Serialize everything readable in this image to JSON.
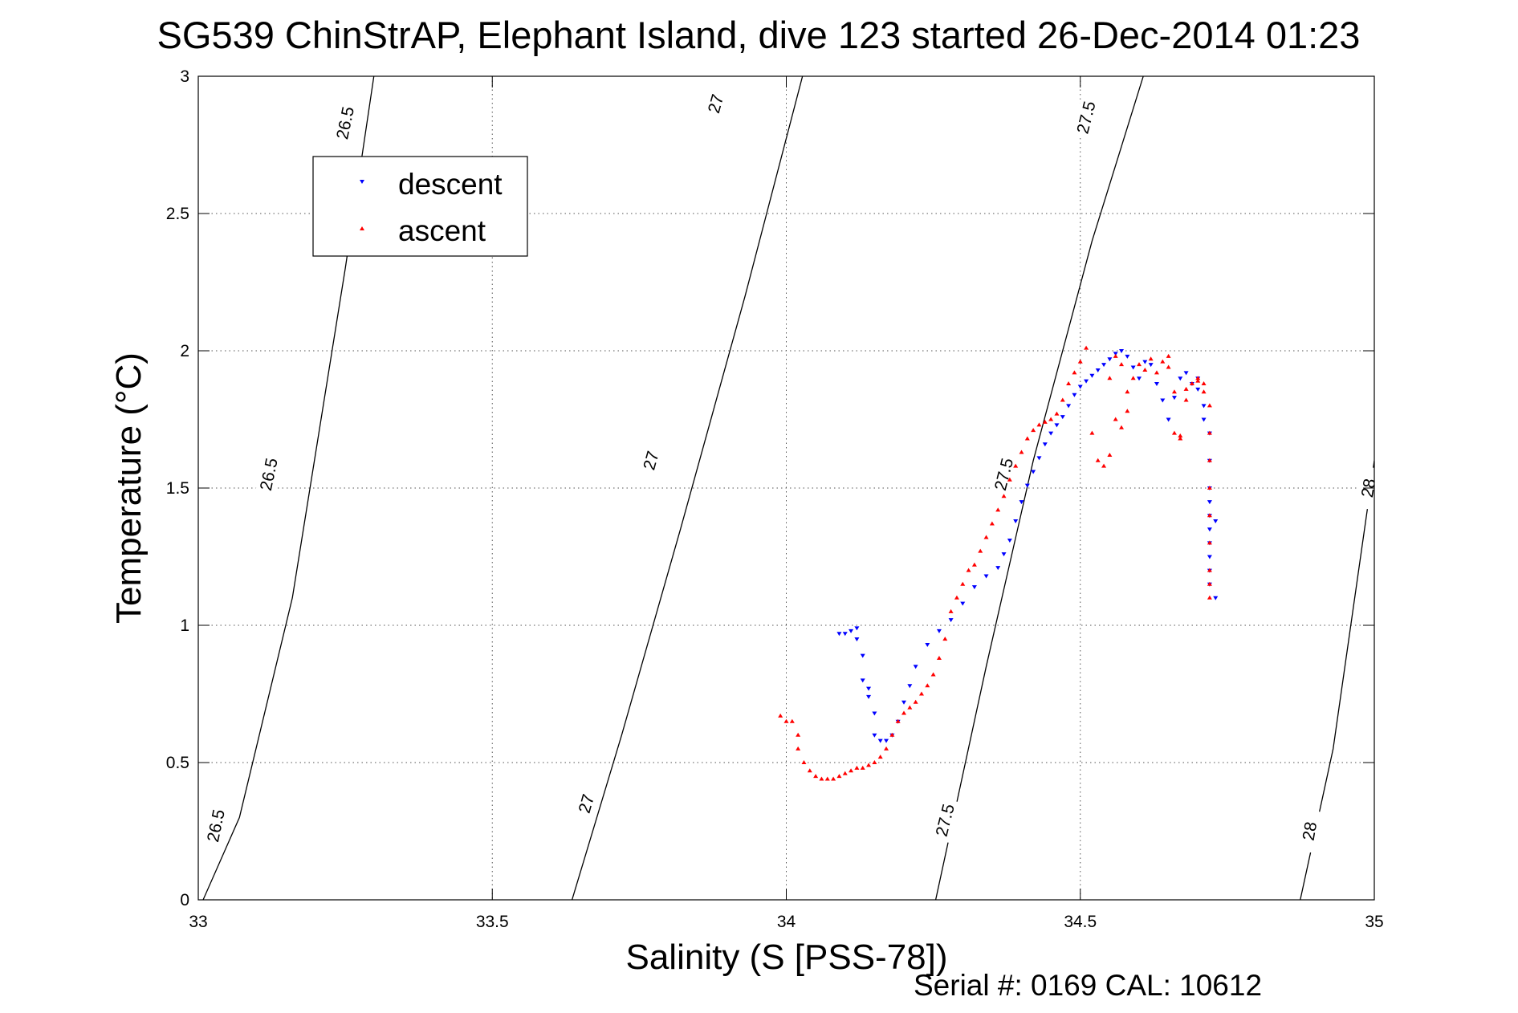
{
  "chart_data": {
    "type": "scatter",
    "title": "SG539 ChinStrAP, Elephant Island, dive 123 started 26-Dec-2014 01:23",
    "xlabel": "Salinity (S [PSS-78])",
    "ylabel": "Temperature (°C)",
    "xlim": [
      33,
      35
    ],
    "ylim": [
      0,
      3
    ],
    "x_ticks": [
      "33",
      "33.5",
      "34",
      "34.5",
      "35"
    ],
    "y_ticks": [
      "0",
      "0.5",
      "1",
      "1.5",
      "2",
      "2.5",
      "3"
    ],
    "grid": true,
    "legend": {
      "position": "top-left",
      "entries": [
        {
          "name": "descent",
          "marker": "triangle-down",
          "color": "#0000ff"
        },
        {
          "name": "ascent",
          "marker": "triangle-up",
          "color": "#ff0000"
        }
      ]
    },
    "footer": "Serial #: 0169 CAL: 10612",
    "isopycnals": [
      {
        "label": "26.5",
        "line": [
          [
            33.0,
            -0.04
          ],
          [
            33.07,
            0.3
          ],
          [
            33.16,
            1.1
          ],
          [
            33.25,
            2.3
          ],
          [
            33.3,
            3.02
          ]
        ],
        "labels_at": [
          [
            33.03,
            0.27
          ],
          [
            33.12,
            1.55
          ],
          [
            33.25,
            2.83
          ]
        ]
      },
      {
        "label": "27",
        "line": [
          [
            33.63,
            -0.04
          ],
          [
            33.72,
            0.6
          ],
          [
            33.82,
            1.35
          ],
          [
            33.93,
            2.2
          ],
          [
            34.03,
            3.02
          ]
        ],
        "labels_at": [
          [
            33.66,
            0.35
          ],
          [
            33.77,
            1.6
          ],
          [
            33.88,
            2.9
          ]
        ]
      },
      {
        "label": "27.5",
        "line": [
          [
            34.25,
            -0.04
          ],
          [
            34.34,
            0.85
          ],
          [
            34.42,
            1.6
          ],
          [
            34.52,
            2.4
          ],
          [
            34.61,
            3.02
          ]
        ],
        "labels_at": [
          [
            34.27,
            0.29
          ],
          [
            34.37,
            1.55
          ],
          [
            34.51,
            2.85
          ]
        ]
      },
      {
        "label": "28",
        "line": [
          [
            34.87,
            -0.04
          ],
          [
            34.93,
            0.55
          ],
          [
            34.99,
            1.45
          ],
          [
            35.0,
            1.6
          ]
        ],
        "labels_at": [
          [
            34.89,
            0.25
          ],
          [
            34.99,
            1.5
          ]
        ]
      }
    ],
    "series": [
      {
        "name": "descent",
        "color": "#0000ff",
        "marker": "triangle-down",
        "x": [
          34.09,
          34.1,
          34.11,
          34.12,
          34.12,
          34.13,
          34.13,
          34.14,
          34.14,
          34.15,
          34.15,
          34.16,
          34.17,
          34.18,
          34.19,
          34.2,
          34.21,
          34.22,
          34.24,
          34.26,
          34.28,
          34.3,
          34.32,
          34.34,
          34.36,
          34.37,
          34.38,
          34.39,
          34.4,
          34.41,
          34.42,
          34.43,
          34.44,
          34.45,
          34.46,
          34.47,
          34.48,
          34.49,
          34.5,
          34.51,
          34.52,
          34.53,
          34.54,
          34.55,
          34.56,
          34.57,
          34.58,
          34.59,
          34.6,
          34.61,
          34.62,
          34.63,
          34.64,
          34.65,
          34.66,
          34.67,
          34.68,
          34.69,
          34.7,
          34.7,
          34.71,
          34.71,
          34.72,
          34.72,
          34.72,
          34.72,
          34.72,
          34.72,
          34.72,
          34.72,
          34.72,
          34.72,
          34.73,
          34.73
        ],
        "y": [
          0.97,
          0.97,
          0.98,
          0.99,
          0.95,
          0.89,
          0.8,
          0.77,
          0.74,
          0.68,
          0.6,
          0.58,
          0.58,
          0.6,
          0.65,
          0.72,
          0.78,
          0.85,
          0.93,
          0.98,
          1.02,
          1.08,
          1.14,
          1.18,
          1.21,
          1.26,
          1.31,
          1.38,
          1.45,
          1.51,
          1.56,
          1.61,
          1.66,
          1.7,
          1.73,
          1.76,
          1.8,
          1.84,
          1.87,
          1.89,
          1.91,
          1.93,
          1.95,
          1.97,
          1.99,
          2.0,
          1.98,
          1.94,
          1.9,
          1.96,
          1.95,
          1.88,
          1.82,
          1.75,
          1.83,
          1.9,
          1.92,
          1.88,
          1.9,
          1.86,
          1.8,
          1.75,
          1.7,
          1.6,
          1.5,
          1.45,
          1.4,
          1.35,
          1.3,
          1.25,
          1.2,
          1.15,
          1.1,
          1.38
        ]
      },
      {
        "name": "ascent",
        "color": "#ff0000",
        "marker": "triangle-up",
        "x": [
          33.99,
          34.0,
          34.01,
          34.02,
          34.02,
          34.03,
          34.04,
          34.05,
          34.06,
          34.07,
          34.08,
          34.09,
          34.1,
          34.11,
          34.12,
          34.13,
          34.14,
          34.15,
          34.16,
          34.17,
          34.18,
          34.19,
          34.2,
          34.21,
          34.22,
          34.23,
          34.24,
          34.25,
          34.26,
          34.27,
          34.28,
          34.29,
          34.3,
          34.31,
          34.32,
          34.33,
          34.34,
          34.35,
          34.36,
          34.37,
          34.38,
          34.39,
          34.4,
          34.41,
          34.42,
          34.43,
          34.44,
          34.45,
          34.46,
          34.47,
          34.48,
          34.49,
          34.5,
          34.51,
          34.52,
          34.53,
          34.54,
          34.55,
          34.55,
          34.56,
          34.56,
          34.57,
          34.57,
          34.58,
          34.58,
          34.59,
          34.6,
          34.61,
          34.62,
          34.63,
          34.64,
          34.65,
          34.65,
          34.66,
          34.66,
          34.67,
          34.67,
          34.68,
          34.68,
          34.69,
          34.7,
          34.7,
          34.71,
          34.71,
          34.72,
          34.72,
          34.72,
          34.72,
          34.72,
          34.72,
          34.72,
          34.72,
          34.72
        ],
        "y": [
          0.67,
          0.65,
          0.65,
          0.6,
          0.55,
          0.5,
          0.47,
          0.45,
          0.44,
          0.44,
          0.44,
          0.45,
          0.46,
          0.47,
          0.48,
          0.48,
          0.49,
          0.5,
          0.52,
          0.55,
          0.6,
          0.65,
          0.68,
          0.7,
          0.72,
          0.75,
          0.78,
          0.82,
          0.88,
          0.95,
          1.05,
          1.1,
          1.15,
          1.2,
          1.22,
          1.27,
          1.32,
          1.37,
          1.42,
          1.47,
          1.53,
          1.58,
          1.63,
          1.68,
          1.71,
          1.73,
          1.74,
          1.75,
          1.77,
          1.82,
          1.88,
          1.92,
          1.96,
          2.01,
          1.7,
          1.6,
          1.58,
          1.62,
          1.9,
          1.98,
          1.75,
          1.72,
          1.95,
          1.85,
          1.78,
          1.9,
          1.95,
          1.93,
          1.97,
          1.92,
          1.96,
          1.98,
          1.94,
          1.85,
          1.7,
          1.69,
          1.68,
          1.82,
          1.86,
          1.88,
          1.89,
          1.9,
          1.88,
          1.85,
          1.8,
          1.7,
          1.6,
          1.5,
          1.4,
          1.3,
          1.2,
          1.15,
          1.1
        ]
      }
    ]
  }
}
